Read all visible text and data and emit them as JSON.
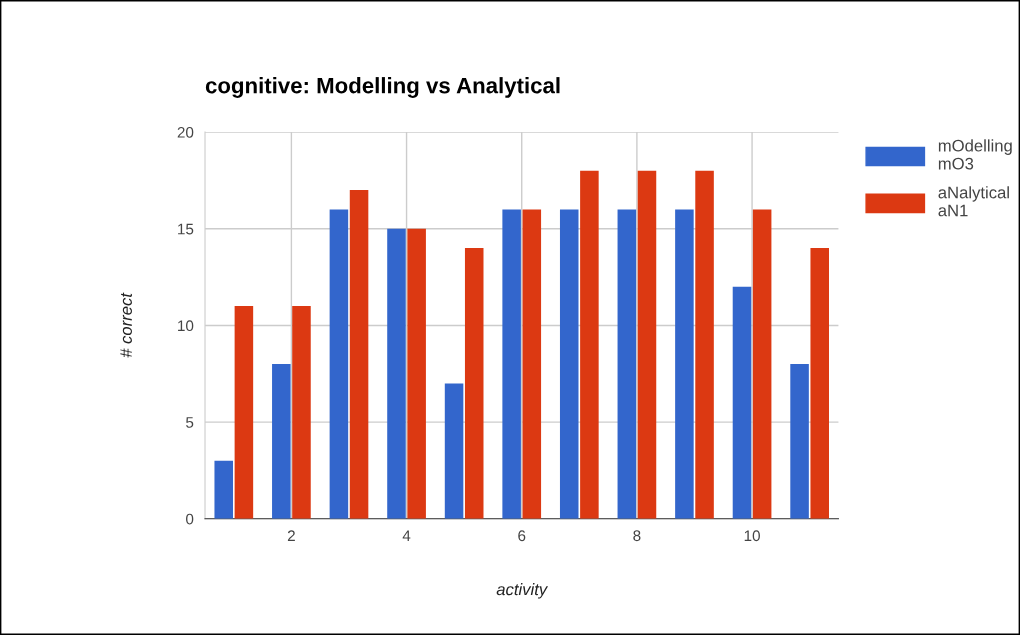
{
  "chart_data": {
    "type": "bar",
    "title": "cognitive: Modelling vs Analytical",
    "xlabel": "activity",
    "ylabel": "# correct",
    "x": [
      1,
      2,
      3,
      4,
      5,
      6,
      7,
      8,
      9,
      10,
      11
    ],
    "series": [
      {
        "name": "mOdelling\nmO3",
        "color": "#3366cc",
        "values": [
          3,
          8,
          16,
          15,
          7,
          16,
          16,
          16,
          16,
          12,
          8
        ]
      },
      {
        "name": "aNalytical\naN1",
        "color": "#dc3912",
        "values": [
          11,
          11,
          17,
          15,
          14,
          16,
          18,
          18,
          18,
          16,
          14
        ]
      }
    ],
    "xlim": [
      0.5,
      11.5
    ],
    "xticks": [
      2,
      4,
      6,
      8,
      10
    ],
    "ylim": [
      0,
      20
    ],
    "yticks": [
      0,
      5,
      10,
      15,
      20
    ],
    "grid": true,
    "legend": "top right"
  }
}
